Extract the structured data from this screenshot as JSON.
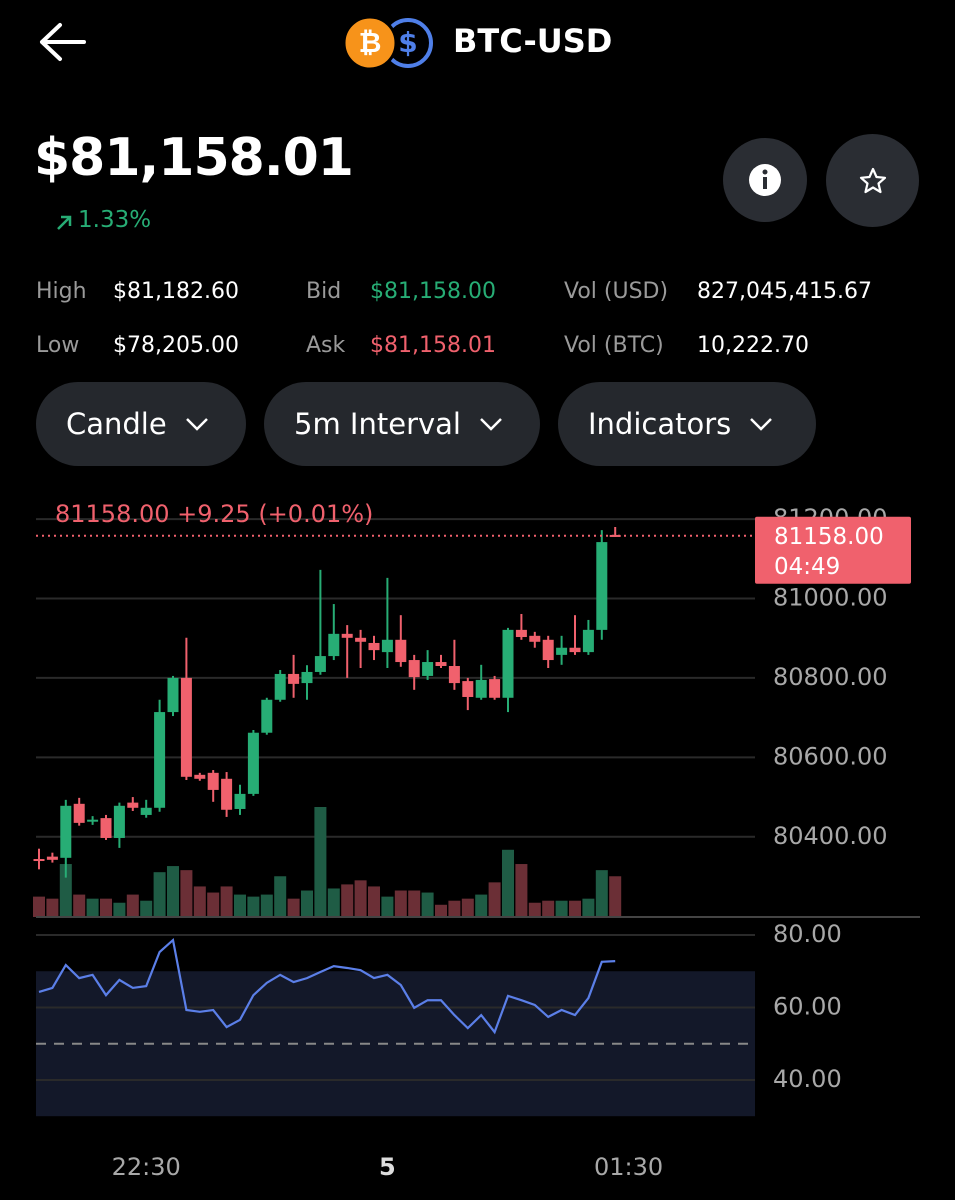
{
  "header": {
    "pair": "BTC-USD"
  },
  "price": {
    "value": "$81,158.01",
    "change": "1.33%",
    "change_color": "#27ad75"
  },
  "stats": [
    [
      {
        "label": "High",
        "value": "$81,182.60",
        "color": "#ffffff"
      },
      {
        "label": "Bid",
        "value": "$81,158.00",
        "color": "#27ad75"
      },
      {
        "label": "Vol (USD)",
        "value": "827,045,415.67",
        "color": "#ffffff"
      }
    ],
    [
      {
        "label": "Low",
        "value": "$78,205.00",
        "color": "#ffffff"
      },
      {
        "label": "Ask",
        "value": "$81,158.01",
        "color": "#f0616d"
      },
      {
        "label": "Vol (BTC)",
        "value": "10,222.70",
        "color": "#ffffff"
      }
    ]
  ],
  "controls": [
    "Candle",
    "5m Interval",
    "Indicators"
  ],
  "chart_data": [
    {
      "type": "candlestick",
      "legend_text": "81158.00 +9.25 (+0.01%)",
      "categories": [
        null,
        null,
        null,
        null,
        null,
        null,
        null,
        null,
        "22:30",
        null,
        null,
        null,
        null,
        null,
        null,
        null,
        null,
        null,
        null,
        null,
        null,
        null,
        null,
        null,
        null,
        null,
        "5",
        null,
        null,
        null,
        null,
        null,
        null,
        null,
        null,
        null,
        null,
        null,
        null,
        null,
        null,
        null,
        null,
        null,
        "01:30"
      ],
      "open": [
        80344,
        80350,
        80347,
        80483,
        80440,
        80447,
        80397,
        80486,
        80455,
        80473,
        80714,
        80800,
        80556,
        80561,
        80546,
        80470,
        80508,
        80662,
        80745,
        80810,
        80787,
        80815,
        80855,
        80911,
        80901,
        80888,
        80865,
        80896,
        80845,
        80805,
        80840,
        80830,
        80792,
        80750,
        80797,
        80750,
        80921,
        80906,
        80896,
        80858,
        80876,
        80865,
        80921,
        81160,
        null
      ],
      "high": [
        80370,
        80360,
        80493,
        80498,
        80452,
        80455,
        80486,
        80500,
        80493,
        80745,
        80805,
        80901,
        80561,
        80568,
        80563,
        80531,
        80669,
        80750,
        80820,
        80858,
        80832,
        81072,
        80986,
        80933,
        80921,
        80906,
        81052,
        80958,
        80858,
        80870,
        80858,
        80896,
        80800,
        80833,
        80805,
        80926,
        80961,
        80916,
        80906,
        80906,
        80958,
        80946,
        81172,
        81180,
        null
      ],
      "low": [
        80318,
        80335,
        80297,
        80428,
        80430,
        80392,
        80372,
        80465,
        80448,
        80463,
        80704,
        80543,
        80541,
        80488,
        80450,
        80455,
        80503,
        80657,
        80740,
        80750,
        80745,
        80808,
        80845,
        80800,
        80825,
        80845,
        80825,
        80828,
        80770,
        80795,
        80825,
        80770,
        80719,
        80745,
        80745,
        80714,
        80896,
        80876,
        80825,
        80833,
        80858,
        80858,
        80896,
        81155,
        null
      ],
      "close": [
        80340,
        80342,
        80478,
        80435,
        80443,
        80397,
        80478,
        80473,
        80473,
        80714,
        80800,
        80551,
        80546,
        80518,
        80468,
        80508,
        80662,
        80745,
        80810,
        80785,
        80815,
        80855,
        80911,
        80901,
        80891,
        80870,
        80896,
        80840,
        80802,
        80840,
        80830,
        80787,
        80752,
        80795,
        80750,
        80921,
        80903,
        80891,
        80845,
        80876,
        80865,
        80921,
        81142,
        81158,
        null
      ],
      "volume": [
        20,
        18,
        52,
        22,
        18,
        18,
        14,
        22,
        16,
        44,
        50,
        46,
        30,
        24,
        30,
        22,
        20,
        22,
        40,
        18,
        26,
        108,
        28,
        32,
        36,
        30,
        20,
        26,
        26,
        24,
        12,
        16,
        18,
        22,
        34,
        66,
        52,
        14,
        16,
        16,
        16,
        18,
        46,
        40,
        null
      ],
      "up_color": "#27ad75",
      "down_color": "#f0616d",
      "volume_up_color": "#1f5c45",
      "volume_down_color": "#6b2f36",
      "ylim": [
        80198,
        81248
      ],
      "yticks": [
        {
          "value": 81200,
          "label": "81200.00"
        },
        {
          "value": 81000,
          "label": "81000.00"
        },
        {
          "value": 80800,
          "label": "80800.00"
        },
        {
          "value": 80600,
          "label": "80600.00"
        },
        {
          "value": 80400,
          "label": "80400.00"
        }
      ],
      "grid": true,
      "current_price": {
        "value": 81158,
        "label": "81158.00"
      },
      "countdown": "04:49"
    },
    {
      "type": "line",
      "values": [
        64.3,
        65.4,
        71.7,
        68.1,
        69,
        63.4,
        67.6,
        65.4,
        65.9,
        75.3,
        78.6,
        59.3,
        58.8,
        59.3,
        54.6,
        56.6,
        63.4,
        66.8,
        69,
        67,
        68.1,
        69.8,
        71.4,
        70.9,
        70.3,
        68.1,
        69,
        66.2,
        59.9,
        62,
        62,
        57.9,
        54.3,
        57.9,
        53.2,
        63.2,
        62,
        60.7,
        57.4,
        59.3,
        57.9,
        62.6,
        72.6,
        72.8,
        null
      ],
      "color": "#5b7fe8",
      "ylim": [
        29.5,
        80
      ],
      "yticks": [
        {
          "value": 80,
          "label": "80.00"
        },
        {
          "value": 60,
          "label": "60.00"
        },
        {
          "value": 40,
          "label": "40.00"
        }
      ],
      "grid": true,
      "band": [
        30,
        70
      ],
      "midline": 50
    }
  ]
}
